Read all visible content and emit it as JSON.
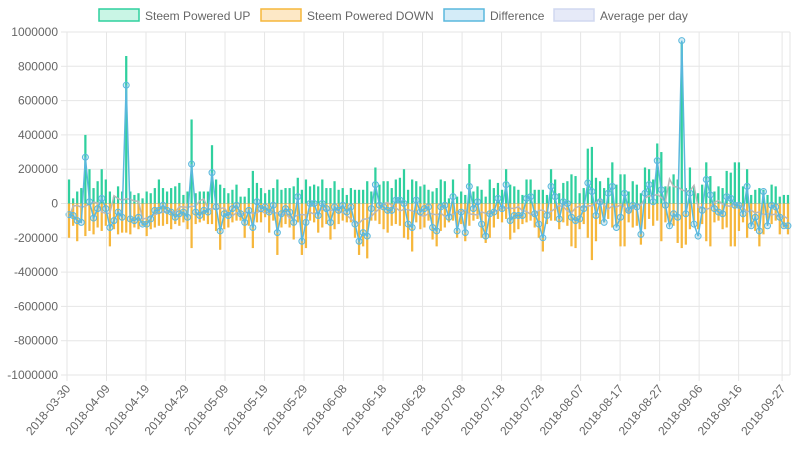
{
  "chart_data": {
    "type": "bar",
    "title": "",
    "xlabel": "",
    "ylabel": "",
    "ylim": [
      -1000000,
      1000000
    ],
    "yticks": [
      1000000,
      800000,
      600000,
      400000,
      200000,
      0,
      -200000,
      -400000,
      -600000,
      -800000,
      -1000000
    ],
    "ytick_labels": [
      "1000000",
      "800000",
      "600000",
      "400000",
      "200000",
      "0",
      "-200000",
      "-400000",
      "-600000",
      "-800000",
      "-1000000"
    ],
    "x_range": [
      "2018-03-30",
      "2018-09-29"
    ],
    "x_tick_labels": [
      "2018-03-30",
      "2018-04-09",
      "2018-04-19",
      "2018-04-29",
      "2018-05-09",
      "2018-05-19",
      "2018-05-29",
      "2018-06-08",
      "2018-06-18",
      "2018-06-28",
      "2018-07-08",
      "2018-07-18",
      "2018-07-28",
      "2018-08-07",
      "2018-08-17",
      "2018-08-27",
      "2018-09-06",
      "2018-09-16",
      "2018-09-27"
    ],
    "grid": true,
    "legend_position": "top",
    "legend": [
      {
        "name": "Steem Powered UP",
        "fill": "#c9f5e5",
        "stroke": "#2fd09e"
      },
      {
        "name": "Steem Powered DOWN",
        "fill": "#fde8c6",
        "stroke": "#f6b73c"
      },
      {
        "name": "Difference",
        "fill": "#d4ecf8",
        "stroke": "#5ab8dd"
      },
      {
        "name": "Average per day",
        "fill": "#e6eaf8",
        "stroke": "#d0d8f0"
      }
    ],
    "colors": {
      "up": "#2fd09e",
      "down": "#f6b73c",
      "difference": "#5ab8dd",
      "average": "#b8b8b8",
      "grid": "#e6e6e6",
      "zero_line": "#c8c8c8"
    },
    "series": [
      {
        "name": "Steem Powered UP",
        "values": [
          140000,
          30000,
          70000,
          90000,
          400000,
          200000,
          90000,
          130000,
          200000,
          140000,
          70000,
          40000,
          100000,
          70000,
          860000,
          70000,
          50000,
          60000,
          30000,
          70000,
          60000,
          90000,
          140000,
          90000,
          70000,
          90000,
          100000,
          120000,
          50000,
          70000,
          490000,
          60000,
          70000,
          70000,
          70000,
          340000,
          140000,
          110000,
          90000,
          60000,
          80000,
          110000,
          40000,
          40000,
          90000,
          190000,
          120000,
          90000,
          60000,
          80000,
          90000,
          140000,
          80000,
          90000,
          90000,
          100000,
          150000,
          80000,
          140000,
          100000,
          110000,
          100000,
          140000,
          90000,
          90000,
          130000,
          80000,
          90000,
          50000,
          90000,
          80000,
          80000,
          80000,
          130000,
          70000,
          210000,
          110000,
          130000,
          130000,
          90000,
          140000,
          150000,
          200000,
          80000,
          140000,
          130000,
          100000,
          110000,
          80000,
          70000,
          90000,
          140000,
          130000,
          30000,
          140000,
          40000,
          70000,
          50000,
          230000,
          70000,
          100000,
          80000,
          40000,
          140000,
          90000,
          120000,
          80000,
          200000,
          110000,
          100000,
          80000,
          50000,
          140000,
          140000,
          80000,
          80000,
          80000,
          50000,
          200000,
          140000,
          60000,
          120000,
          130000,
          170000,
          160000,
          60000,
          90000,
          320000,
          330000,
          150000,
          130000,
          90000,
          150000,
          240000,
          110000,
          170000,
          170000,
          70000,
          130000,
          110000,
          60000,
          210000,
          200000,
          140000,
          350000,
          300000,
          100000,
          100000,
          170000,
          140000,
          940000,
          90000,
          210000,
          100000,
          60000,
          110000,
          240000,
          160000,
          70000,
          100000,
          90000,
          190000,
          180000,
          240000,
          240000,
          100000,
          200000,
          50000,
          80000,
          90000,
          80000,
          50000,
          110000,
          100000,
          40000,
          50000,
          50000
        ]
      },
      {
        "name": "Steem Powered DOWN",
        "values": [
          -200000,
          -130000,
          -220000,
          -100000,
          -190000,
          -160000,
          -180000,
          -140000,
          -160000,
          -130000,
          -250000,
          -150000,
          -180000,
          -170000,
          -170000,
          -180000,
          -140000,
          -150000,
          -130000,
          -190000,
          -150000,
          -140000,
          -130000,
          -130000,
          -120000,
          -150000,
          -120000,
          -130000,
          -110000,
          -150000,
          -260000,
          -120000,
          -110000,
          -100000,
          -120000,
          -120000,
          -160000,
          -270000,
          -150000,
          -140000,
          -110000,
          -100000,
          -100000,
          -200000,
          -130000,
          -260000,
          -110000,
          -110000,
          -80000,
          -170000,
          -100000,
          -300000,
          -140000,
          -120000,
          -140000,
          -210000,
          -110000,
          -300000,
          -260000,
          -100000,
          -110000,
          -170000,
          -140000,
          -120000,
          -210000,
          -150000,
          -120000,
          -100000,
          -110000,
          -110000,
          -200000,
          -300000,
          -250000,
          -320000,
          -100000,
          -100000,
          -120000,
          -150000,
          -170000,
          -130000,
          -120000,
          -130000,
          -200000,
          -210000,
          -280000,
          -110000,
          -150000,
          -140000,
          -100000,
          -210000,
          -250000,
          -160000,
          -140000,
          -110000,
          -100000,
          -200000,
          -120000,
          -220000,
          -130000,
          -100000,
          -90000,
          -200000,
          -230000,
          -200000,
          -140000,
          -90000,
          -110000,
          -90000,
          -210000,
          -170000,
          -150000,
          -120000,
          -110000,
          -100000,
          -140000,
          -200000,
          -280000,
          -120000,
          -100000,
          -100000,
          -150000,
          -110000,
          -130000,
          -250000,
          -260000,
          -150000,
          -120000,
          -200000,
          -330000,
          -220000,
          -120000,
          -110000,
          -90000,
          -140000,
          -120000,
          -250000,
          -250000,
          -110000,
          -140000,
          -130000,
          -240000,
          -150000,
          -90000,
          -130000,
          -100000,
          -220000,
          -110000,
          -110000,
          -130000,
          -230000,
          -260000,
          -240000,
          -150000,
          -100000,
          -150000,
          -120000,
          -220000,
          -250000,
          -110000,
          -100000,
          -150000,
          -140000,
          -250000,
          -250000,
          -160000,
          -110000,
          -200000,
          -120000,
          -160000,
          -250000,
          -180000,
          -120000,
          -120000,
          -100000,
          -180000,
          -140000,
          -180000
        ]
      },
      {
        "name": "Difference",
        "values": [
          -65000,
          -70000,
          -100000,
          -110000,
          270000,
          10000,
          -85000,
          -30000,
          30000,
          -30000,
          -140000,
          -100000,
          -50000,
          -80000,
          690000,
          -90000,
          -100000,
          -80000,
          -120000,
          -120000,
          -90000,
          -40000,
          -40000,
          -10000,
          -40000,
          -50000,
          -80000,
          -60000,
          -50000,
          -80000,
          230000,
          -50000,
          -70000,
          -40000,
          -50000,
          180000,
          -20000,
          -160000,
          -60000,
          -70000,
          -30000,
          -10000,
          -60000,
          -110000,
          -40000,
          -140000,
          10000,
          -30000,
          -20000,
          -50000,
          -10000,
          -170000,
          -60000,
          -30000,
          -50000,
          -110000,
          40000,
          -220000,
          -110000,
          0,
          0,
          -70000,
          0,
          -30000,
          -110000,
          -20000,
          -40000,
          -10000,
          -50000,
          -20000,
          -120000,
          -220000,
          -170000,
          -190000,
          -30000,
          110000,
          -10000,
          -20000,
          -40000,
          -40000,
          20000,
          20000,
          0,
          -120000,
          -140000,
          20000,
          -50000,
          -30000,
          -20000,
          -140000,
          -160000,
          -20000,
          -10000,
          -80000,
          40000,
          -160000,
          -50000,
          -170000,
          100000,
          -30000,
          10000,
          -120000,
          -190000,
          -60000,
          -50000,
          30000,
          -30000,
          110000,
          -100000,
          -70000,
          -70000,
          -70000,
          30000,
          40000,
          -60000,
          -120000,
          -200000,
          -70000,
          100000,
          40000,
          -90000,
          10000,
          0,
          -80000,
          -100000,
          -90000,
          -30000,
          120000,
          70000,
          -70000,
          10000,
          -110000,
          60000,
          100000,
          -140000,
          -80000,
          60000,
          -40000,
          -10000,
          -20000,
          -180000,
          60000,
          110000,
          10000,
          250000,
          80000,
          -10000,
          -130000,
          -60000,
          -80000,
          950000,
          -60000,
          60000,
          -120000,
          -190000,
          -40000,
          140000,
          50000,
          -30000,
          -50000,
          -60000,
          40000,
          30000,
          -10000,
          -10000,
          -60000,
          100000,
          -130000,
          -80000,
          -160000,
          70000,
          -130000,
          -10000,
          -20000,
          -80000,
          -130000,
          -130000
        ]
      }
    ]
  }
}
